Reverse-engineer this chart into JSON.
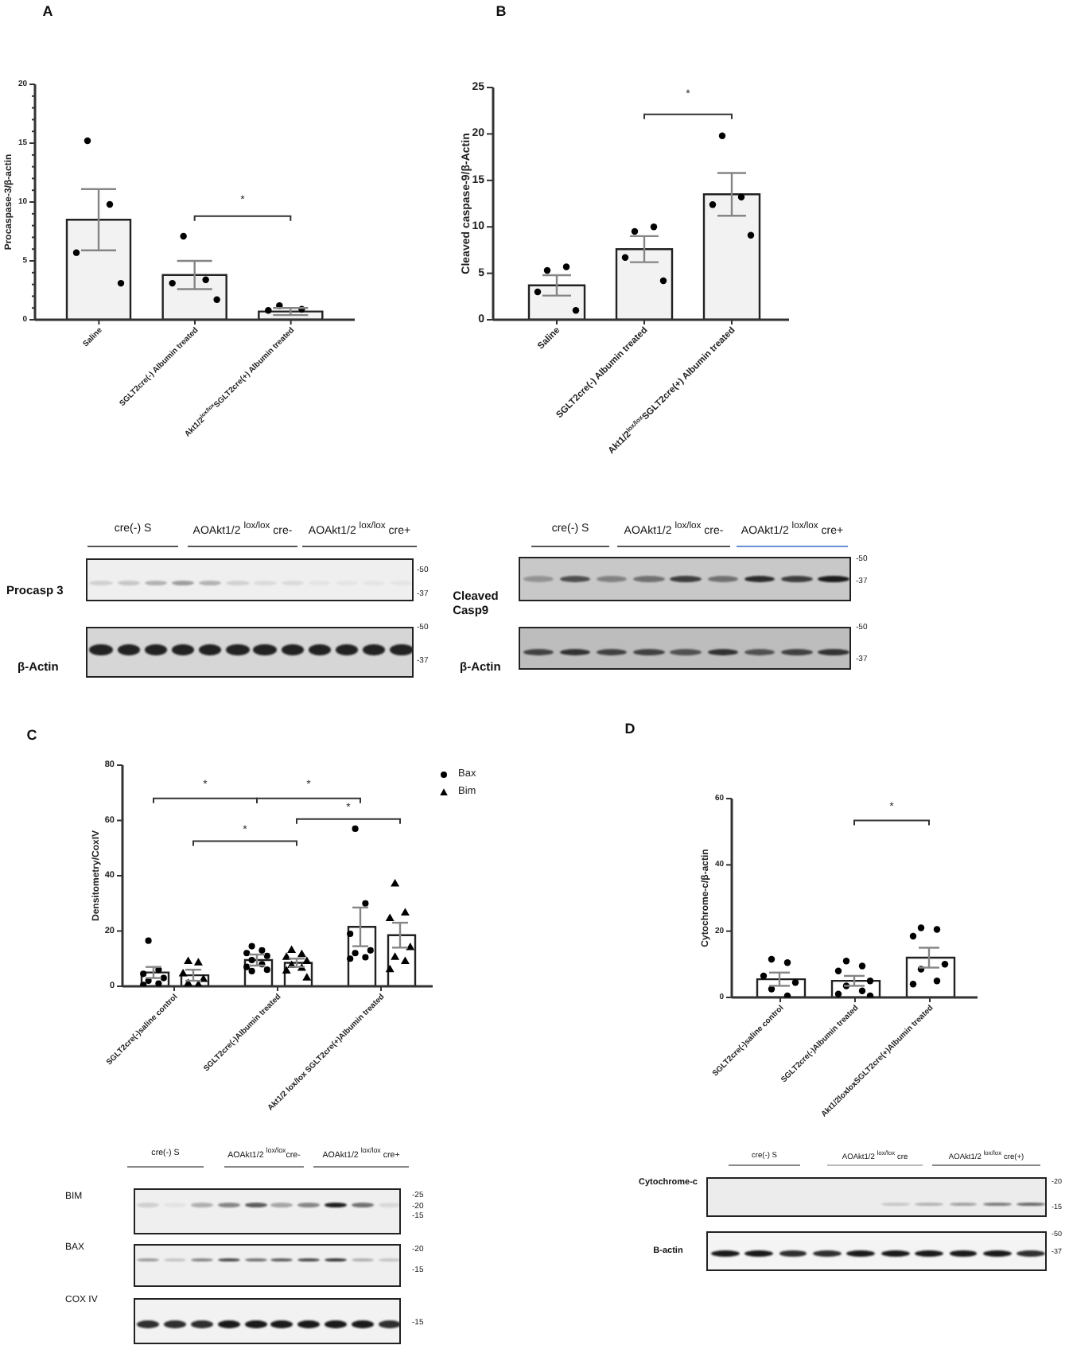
{
  "chart_data": [
    {
      "type": "bar",
      "title": "A",
      "ylabel": "Procaspase-3/β-actin",
      "categories": [
        "Saline",
        "SGLT2cre(-) Albumin treated",
        "Akt1/2$^{lox/lox}$SGLT2cre(+) Albumin treated"
      ],
      "series": [
        {
          "color": "#f2f2f2",
          "values": [
            8.5,
            3.8,
            0.7
          ],
          "errors": [
            2.6,
            1.2,
            0.3
          ]
        },
        {
          "type": "scatter",
          "color": "#000000",
          "marker": "circle",
          "x": [
            "Saline",
            "Saline",
            "Saline",
            "Saline",
            "SGLT2cre(-) Albumin treated",
            "SGLT2cre(-) Albumin treated",
            "SGLT2cre(-) Albumin treated",
            "SGLT2cre(-) Albumin treated",
            "Akt1/2$^{lox/lox}$SGLT2cre(+) Albumin treated",
            "Akt1/2$^{lox/lox}$SGLT2cre(+) Albumin treated",
            "Akt1/2$^{lox/lox}$SGLT2cre(+) Albumin treated"
          ],
          "values": [
            15.2,
            9.8,
            5.7,
            3.1,
            7.1,
            3.4,
            3.1,
            1.7,
            1.2,
            0.9,
            0.8
          ]
        }
      ],
      "ylim": [
        0,
        20
      ],
      "yticks": [
        0,
        {
          "value": 1,
          "label": null
        },
        {
          "value": 2,
          "label": null
        },
        {
          "value": 3,
          "label": null
        },
        {
          "value": 4,
          "label": null
        },
        5,
        {
          "value": 6,
          "label": null
        },
        {
          "value": 7,
          "label": null
        },
        {
          "value": 8,
          "label": null
        },
        {
          "value": 9,
          "label": null
        },
        10,
        {
          "value": 11,
          "label": null
        },
        {
          "value": 12,
          "label": null
        },
        {
          "value": 13,
          "label": null
        },
        {
          "value": 14,
          "label": null
        },
        15,
        {
          "value": 16,
          "label": null
        },
        {
          "value": 17,
          "label": null
        },
        {
          "value": 18,
          "label": null
        },
        {
          "value": 19,
          "label": null
        },
        20
      ],
      "annotations": [
        "*"
      ]
    },
    {
      "type": "bar",
      "title": "B",
      "ylabel": "Cleaved caspase-9/β-Actin",
      "categories": [
        "Saline",
        "SGLT2cre(-) Albumin treated",
        "Akt1/2$^{lox/lox}$SGLT2cre(+) Albumin treated"
      ],
      "series": [
        {
          "color": "#f2f2f2",
          "values": [
            3.7,
            7.6,
            13.5
          ],
          "errors": [
            1.1,
            1.4,
            2.3
          ]
        },
        {
          "type": "scatter",
          "color": "#000000",
          "marker": "circle",
          "x": [
            "Saline",
            "Saline",
            "Saline",
            "Saline",
            "SGLT2cre(-) Albumin treated",
            "SGLT2cre(-) Albumin treated",
            "SGLT2cre(-) Albumin treated",
            "SGLT2cre(-) Albumin treated",
            "Akt1/2$^{lox/lox}$SGLT2cre(+) Albumin treated",
            "Akt1/2$^{lox/lox}$SGLT2cre(+) Albumin treated",
            "Akt1/2$^{lox/lox}$SGLT2cre(+) Albumin treated",
            "Akt1/2$^{lox/lox}$SGLT2cre(+) Albumin treated"
          ],
          "values": [
            5.3,
            5.7,
            3.0,
            1.0,
            9.5,
            10.0,
            6.7,
            4.2,
            19.8,
            13.2,
            12.4,
            9.1
          ]
        }
      ],
      "ylim": [
        0,
        25
      ],
      "yticks": [
        0,
        5,
        10,
        15,
        20,
        25
      ],
      "annotations": [
        "*"
      ]
    },
    {
      "type": "other",
      "categories": [
        "cre(-) S",
        "AOAkt1/2 $^{lox/lox}$ cre-",
        "AOAkt1/2 $^{lox/lox}$ cre+"
      ],
      "y_categories": [
        "Procasp 3",
        "β-Actin"
      ],
      "annotations": [
        "-50",
        "-37",
        "-50",
        "-37"
      ]
    },
    {
      "type": "other",
      "categories": [
        "cre(-) S",
        "AOAkt1/2 $^{lox/lox}$ cre-",
        "AOAkt1/2 $^{lox/lox}$ cre+"
      ],
      "y_categories": [
        "Cleaved Casp9",
        "β-Actin"
      ],
      "annotations": [
        "-50",
        "-37",
        "-50",
        "-37"
      ]
    },
    {
      "type": "bar",
      "title": "C",
      "ylabel": "Densitometry/CoxIV",
      "categories": [
        "SGLT2cre(-)saline control",
        "SGLT2cre(-)Albumin treated",
        "Akt1/2 lox/lox SGLT2cre(+)Albumin treated"
      ],
      "series": [
        {
          "color": "#ffffff",
          "values": [
            5,
            9.5,
            21.5
          ],
          "errors": [
            2,
            2,
            7
          ]
        },
        {
          "color": "#ffffff",
          "values": [
            4,
            8.5,
            18.5
          ],
          "errors": [
            2,
            1.5,
            4.5
          ]
        },
        {
          "type": "scatter",
          "name": "Bax",
          "color": "#000000",
          "marker": "circle",
          "x": [
            "SGLT2cre(-)saline control",
            "SGLT2cre(-)saline control",
            "SGLT2cre(-)saline control",
            "SGLT2cre(-)saline control",
            "SGLT2cre(-)saline control",
            "SGLT2cre(-)saline control",
            "SGLT2cre(-)saline control",
            "SGLT2cre(-)Albumin treated",
            "SGLT2cre(-)Albumin treated",
            "SGLT2cre(-)Albumin treated",
            "SGLT2cre(-)Albumin treated",
            "SGLT2cre(-)Albumin treated",
            "SGLT2cre(-)Albumin treated",
            "SGLT2cre(-)Albumin treated",
            "SGLT2cre(-)Albumin treated",
            "SGLT2cre(-)Albumin treated",
            "Akt1/2 lox/lox SGLT2cre(+)Albumin treated",
            "Akt1/2 lox/lox SGLT2cre(+)Albumin treated",
            "Akt1/2 lox/lox SGLT2cre(+)Albumin treated",
            "Akt1/2 lox/lox SGLT2cre(+)Albumin treated",
            "Akt1/2 lox/lox SGLT2cre(+)Albumin treated",
            "Akt1/2 lox/lox SGLT2cre(+)Albumin treated",
            "Akt1/2 lox/lox SGLT2cre(+)Albumin treated"
          ],
          "values": [
            16.5,
            6,
            4.5,
            3,
            2,
            1,
            0.5,
            14.5,
            13,
            12,
            11,
            9.5,
            8,
            7,
            6,
            5.5,
            57,
            30,
            19,
            13,
            12,
            10.5,
            10
          ]
        },
        {
          "type": "scatter",
          "name": "Bim",
          "color": "#000000",
          "marker": "triangle",
          "x": [
            "SGLT2cre(-)saline control",
            "SGLT2cre(-)saline control",
            "SGLT2cre(-)saline control",
            "SGLT2cre(-)saline control",
            "SGLT2cre(-)saline control",
            "SGLT2cre(-)saline control",
            "SGLT2cre(-)Albumin treated",
            "SGLT2cre(-)Albumin treated",
            "SGLT2cre(-)Albumin treated",
            "SGLT2cre(-)Albumin treated",
            "SGLT2cre(-)Albumin treated",
            "SGLT2cre(-)Albumin treated",
            "SGLT2cre(-)Albumin treated",
            "SGLT2cre(-)Albumin treated",
            "Akt1/2 lox/lox SGLT2cre(+)Albumin treated",
            "Akt1/2 lox/lox SGLT2cre(+)Albumin treated",
            "Akt1/2 lox/lox SGLT2cre(+)Albumin treated",
            "Akt1/2 lox/lox SGLT2cre(+)Albumin treated",
            "Akt1/2 lox/lox SGLT2cre(+)Albumin treated",
            "Akt1/2 lox/lox SGLT2cre(+)Albumin treated",
            "Akt1/2 lox/lox SGLT2cre(+)Albumin treated"
          ],
          "values": [
            9,
            8.5,
            4.5,
            2.5,
            1,
            0.5,
            13,
            11.5,
            10.5,
            9,
            7.5,
            6.5,
            5.5,
            3,
            37,
            26.5,
            24.5,
            14,
            10.5,
            9,
            6
          ]
        }
      ],
      "ylim": [
        0,
        80
      ],
      "yticks": [
        0,
        20,
        40,
        60,
        80
      ],
      "legend": "top right",
      "annotations": [
        "*",
        "*",
        "*",
        "*"
      ]
    },
    {
      "type": "bar",
      "title": "D",
      "ylabel": "Cytochrome-c/β-actin",
      "categories": [
        "SGLT2cre(-)saline control",
        "SGLT2cre(-)Albumin treated",
        "Akt1/2loxloxSGLT2cre(+)Albumin treated"
      ],
      "series": [
        {
          "color": "#ffffff",
          "values": [
            5.5,
            5,
            12
          ],
          "errors": [
            2,
            1.5,
            3
          ]
        },
        {
          "type": "scatter",
          "color": "#000000",
          "marker": "circle",
          "x": [
            "SGLT2cre(-)saline control",
            "SGLT2cre(-)saline control",
            "SGLT2cre(-)saline control",
            "SGLT2cre(-)saline control",
            "SGLT2cre(-)saline control",
            "SGLT2cre(-)saline control",
            "SGLT2cre(-)Albumin treated",
            "SGLT2cre(-)Albumin treated",
            "SGLT2cre(-)Albumin treated",
            "SGLT2cre(-)Albumin treated",
            "SGLT2cre(-)Albumin treated",
            "SGLT2cre(-)Albumin treated",
            "SGLT2cre(-)Albumin treated",
            "SGLT2cre(-)Albumin treated",
            "Akt1/2loxloxSGLT2cre(+)Albumin treated",
            "Akt1/2loxloxSGLT2cre(+)Albumin treated",
            "Akt1/2loxloxSGLT2cre(+)Albumin treated",
            "Akt1/2loxloxSGLT2cre(+)Albumin treated",
            "Akt1/2loxloxSGLT2cre(+)Albumin treated",
            "Akt1/2loxloxSGLT2cre(+)Albumin treated",
            "Akt1/2loxloxSGLT2cre(+)Albumin treated"
          ],
          "values": [
            11.5,
            10.5,
            6.5,
            4.5,
            2.5,
            0.5,
            11,
            9.5,
            8,
            5,
            3.5,
            2,
            1,
            0.5,
            21,
            20.5,
            18.5,
            10,
            8.5,
            5,
            4
          ]
        }
      ],
      "ylim": [
        0,
        60
      ],
      "yticks": [
        0,
        20,
        40,
        60
      ],
      "annotations": [
        "*"
      ]
    },
    {
      "type": "other",
      "categories": [
        "cre(-) S",
        "AOAkt1/2 $^{lox/lox}$cre-",
        "AOAkt1/2 $^{lox/lox}$ cre+"
      ],
      "y_categories": [
        "BIM",
        "BAX",
        "COX IV"
      ],
      "annotations": [
        "-25",
        "-20",
        "-15",
        "-20",
        "-15",
        "-15"
      ]
    },
    {
      "type": "other",
      "categories": [
        "cre(-) S",
        "AOAkt1/2 $^{lox/lox}$ cre",
        "AOAkt1/2 $^{lox/lox}$ cre(+)"
      ],
      "y_categories": [
        "Cytochrome-c",
        "B-actin"
      ],
      "annotations": [
        "-20",
        "-15",
        "-50",
        "-37"
      ]
    }
  ]
}
